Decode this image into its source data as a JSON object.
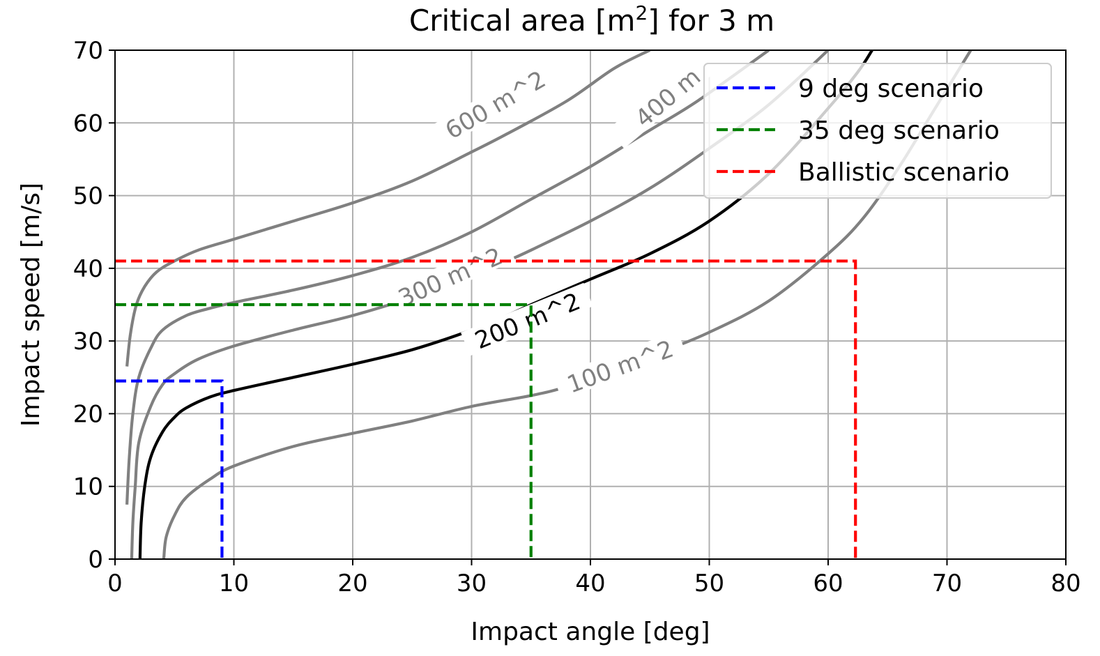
{
  "chart_data": {
    "type": "line",
    "title": {
      "main": "Critical area [m",
      "sup": "2",
      "rest": "] for 3 m"
    },
    "xlabel": "Impact angle [deg]",
    "ylabel": "Impact speed  [m/s]",
    "xlim": [
      0,
      80
    ],
    "ylim": [
      0,
      70
    ],
    "xticks": [
      0,
      10,
      20,
      30,
      40,
      50,
      60,
      70,
      80
    ],
    "yticks": [
      0,
      10,
      20,
      30,
      40,
      50,
      60,
      70
    ],
    "grid": true,
    "legend": {
      "placement": "top-right"
    },
    "contours": [
      {
        "level": "600 m^2",
        "label": "600 m^2",
        "color": "#808080",
        "points": [
          [
            1.0,
            26.5
          ],
          [
            1.3,
            31
          ],
          [
            1.8,
            35
          ],
          [
            2.5,
            37.5
          ],
          [
            3.5,
            39.5
          ],
          [
            5,
            41
          ],
          [
            7,
            42.5
          ],
          [
            10,
            44
          ],
          [
            15,
            46.5
          ],
          [
            20,
            49
          ],
          [
            25,
            52
          ],
          [
            30,
            56
          ],
          [
            33,
            58.5
          ],
          [
            38,
            63
          ],
          [
            42,
            67.5
          ],
          [
            45,
            70
          ]
        ]
      },
      {
        "level": "400 m^2",
        "label": "400 m",
        "color": "#808080",
        "points": [
          [
            1.0,
            7.5
          ],
          [
            1.2,
            14
          ],
          [
            1.5,
            20
          ],
          [
            2,
            25
          ],
          [
            3,
            29
          ],
          [
            4,
            31.5
          ],
          [
            6,
            33.5
          ],
          [
            8,
            34.5
          ],
          [
            10,
            35.3
          ],
          [
            15,
            37
          ],
          [
            20,
            39
          ],
          [
            25,
            41.5
          ],
          [
            30,
            45
          ],
          [
            35,
            49.5
          ],
          [
            40,
            54
          ],
          [
            45,
            59
          ],
          [
            49,
            63
          ],
          [
            55,
            70
          ]
        ]
      },
      {
        "level": "300 m^2",
        "label": "300 m^2",
        "color": "#808080",
        "points": [
          [
            1.4,
            0
          ],
          [
            1.5,
            5
          ],
          [
            1.7,
            10
          ],
          [
            2,
            16
          ],
          [
            3,
            21
          ],
          [
            4,
            24
          ],
          [
            5,
            25.5
          ],
          [
            7,
            27.5
          ],
          [
            10,
            29.3
          ],
          [
            15,
            31.5
          ],
          [
            20,
            33.5
          ],
          [
            25,
            36
          ],
          [
            30,
            39
          ],
          [
            33,
            41
          ],
          [
            35,
            42.5
          ],
          [
            40,
            46.5
          ],
          [
            45,
            51
          ],
          [
            50,
            56.5
          ],
          [
            55,
            62.5
          ],
          [
            60,
            70
          ]
        ]
      },
      {
        "level": "200 m^2",
        "label": "200 m^2",
        "color": "#000000",
        "points": [
          [
            2.1,
            0
          ],
          [
            2.2,
            5
          ],
          [
            2.5,
            10
          ],
          [
            3,
            14
          ],
          [
            4,
            17.5
          ],
          [
            5,
            19.5
          ],
          [
            6,
            20.8
          ],
          [
            8,
            22.3
          ],
          [
            10,
            23.2
          ],
          [
            15,
            25
          ],
          [
            20,
            26.8
          ],
          [
            25,
            28.8
          ],
          [
            30,
            31.5
          ],
          [
            33,
            33.5
          ],
          [
            35,
            35
          ],
          [
            40,
            38.5
          ],
          [
            45,
            42
          ],
          [
            50,
            46.5
          ],
          [
            55,
            53
          ],
          [
            60,
            62
          ],
          [
            62.5,
            67
          ],
          [
            63.7,
            70
          ]
        ]
      },
      {
        "level": "100 m^2",
        "label": "100 m^2",
        "color": "#808080",
        "points": [
          [
            4.1,
            0
          ],
          [
            4.3,
            3
          ],
          [
            5,
            6
          ],
          [
            6,
            8.5
          ],
          [
            8,
            11
          ],
          [
            10,
            12.8
          ],
          [
            15,
            15.5
          ],
          [
            20,
            17.3
          ],
          [
            25,
            19
          ],
          [
            30,
            21
          ],
          [
            35,
            22.5
          ],
          [
            38,
            23.7
          ],
          [
            42,
            26
          ],
          [
            46,
            28.5
          ],
          [
            50,
            31.2
          ],
          [
            55,
            35.5
          ],
          [
            60,
            42
          ],
          [
            63,
            47
          ],
          [
            66,
            54
          ],
          [
            69,
            62
          ],
          [
            72,
            70
          ]
        ]
      }
    ],
    "series": [
      {
        "name": "9 deg scenario",
        "color": "#0000ff",
        "angle": 9,
        "speed": 24.5
      },
      {
        "name": "35 deg scenario",
        "color": "#008000",
        "angle": 35,
        "speed": 35
      },
      {
        "name": "Ballistic scenario",
        "color": "#ff0000",
        "angle": 62.3,
        "speed": 41
      }
    ]
  }
}
